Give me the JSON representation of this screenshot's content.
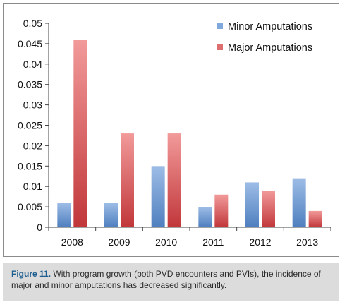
{
  "chart_data": {
    "type": "bar",
    "title": "",
    "xlabel": "",
    "ylabel": "",
    "categories": [
      "2008",
      "2009",
      "2010",
      "2011",
      "2012",
      "2013"
    ],
    "series": [
      {
        "name": "Minor Amputations",
        "color": "#7fa8dc",
        "values": [
          0.006,
          0.006,
          0.015,
          0.005,
          0.011,
          0.012
        ]
      },
      {
        "name": "Major Amputations",
        "color": "#de6f70",
        "values": [
          0.046,
          0.023,
          0.023,
          0.008,
          0.009,
          0.004
        ]
      }
    ],
    "ylim": [
      0,
      0.05
    ],
    "yticks": [
      "0",
      "0.005",
      "0.01",
      "0.015",
      "0.02",
      "0.025",
      "0.03",
      "0.035",
      "0.04",
      "0.045",
      "0.05"
    ],
    "grid": false,
    "legend_position": "top-right"
  },
  "caption": {
    "label": "Figure 11.",
    "text": " With program growth (both PVD encounters and PVIs), the incidence of major and minor amputations has decreased significantly."
  }
}
